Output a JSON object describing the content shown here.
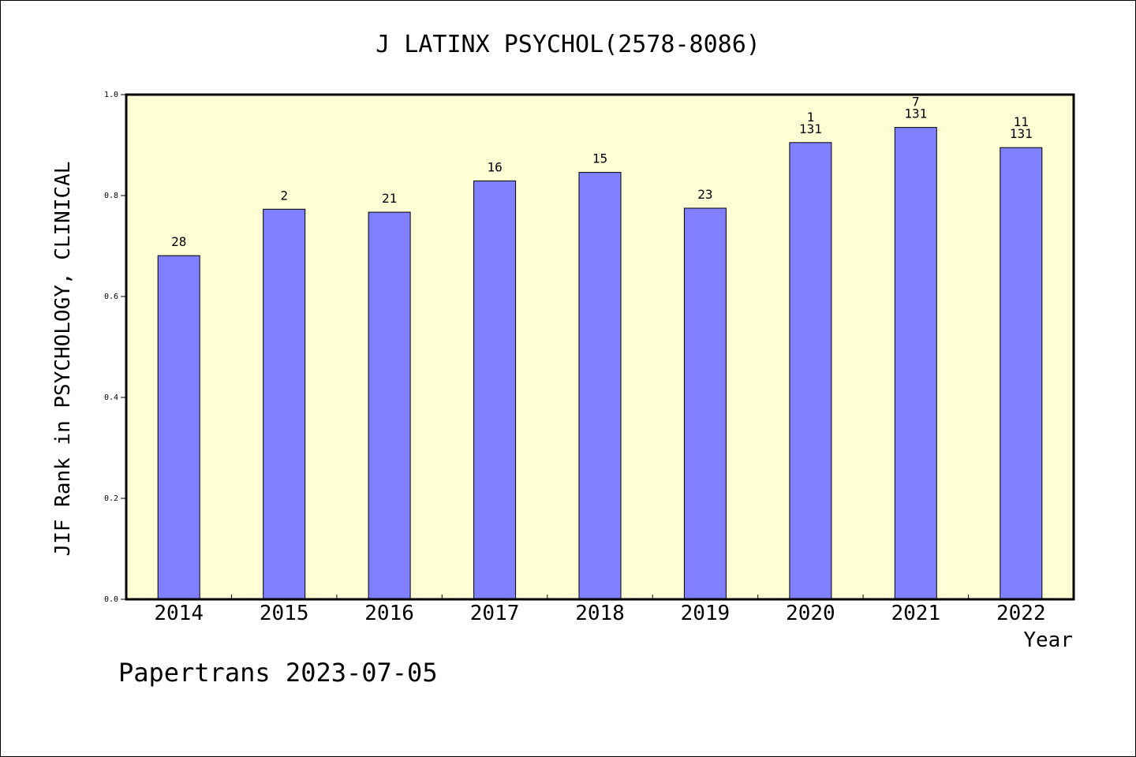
{
  "chart_data": {
    "type": "bar",
    "title": "J LATINX PSYCHOL(2578-8086)",
    "xlabel": "Year",
    "ylabel": "JIF Rank in PSYCHOLOGY, CLINICAL",
    "ylim": [
      0,
      1.0
    ],
    "yticks": [
      "0.0",
      "0.2",
      "0.4",
      "0.6",
      "0.8",
      "1.0"
    ],
    "grid": false,
    "categories": [
      "2014",
      "2015",
      "2016",
      "2017",
      "2018",
      "2019",
      "2020",
      "2021",
      "2022"
    ],
    "values": [
      0.681,
      0.773,
      0.767,
      0.829,
      0.846,
      0.775,
      0.905,
      0.935,
      0.895
    ],
    "bar_labels": [
      [
        "28"
      ],
      [
        "2"
      ],
      [
        "21"
      ],
      [
        "16"
      ],
      [
        "15"
      ],
      [
        "23"
      ],
      [
        "1",
        "131"
      ],
      [
        "7",
        "131"
      ],
      [
        "11",
        "131"
      ]
    ],
    "colors": {
      "bar": "#8080ff",
      "plot_background": "#ffffd5",
      "axis": "#000000"
    }
  },
  "footer": "Papertrans 2023-07-05"
}
